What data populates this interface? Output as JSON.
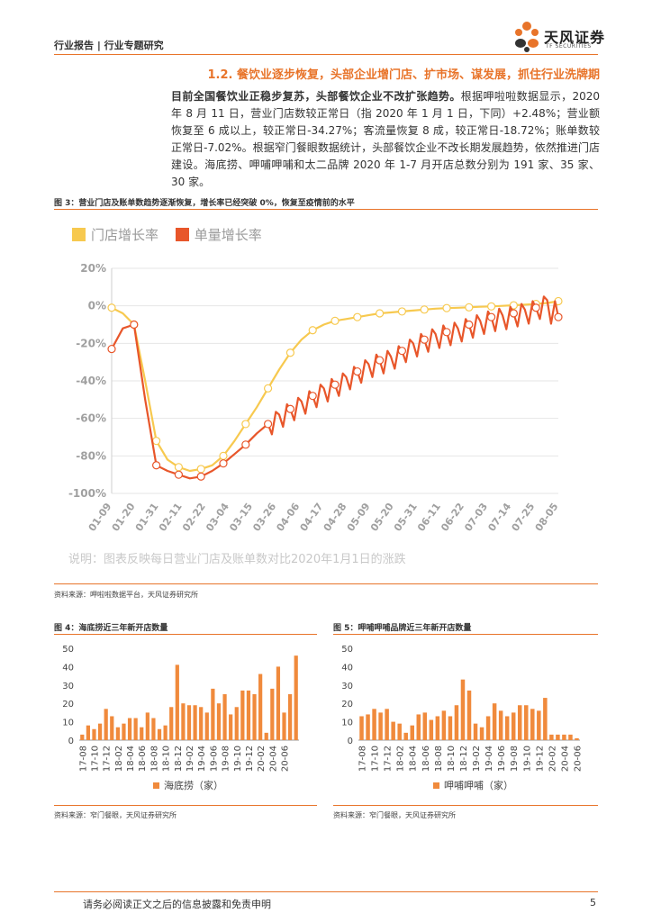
{
  "header": {
    "left": "行业报告 | 行业专题研究",
    "logo_cn": "天风证券",
    "logo_en": "TF SECURITIES"
  },
  "section": {
    "title": "1.2. 餐饮业逐步恢复，头部企业增门店、扩市场、谋发展，抓住行业洗牌期",
    "para_bold": "目前全国餐饮业正稳步复苏，头部餐饮企业不改扩张趋势。",
    "para_rest": "根据呷啦啦数据显示，2020 年 8 月 11 日，营业门店数较正常日（指 2020 年 1 月 1 日，下同）+2.48%；营业额恢复至 6 成以上，较正常日-34.27%；客流量恢复 8 成，较正常日-18.72%；账单数较正常日-7.02%。根据窄门餐眼数据统计，头部餐饮企业不改长期发展趋势，依然推进门店建设。海底捞、呷哺呷哺和太二品牌 2020 年 1-7 月开店总数分别为 191 家、35 家、30 家。"
  },
  "figure3": {
    "title": "图 3：营业门店及账单数趋势逐渐恢复，增长率已经突破 0%，恢复至疫情前的水平",
    "note": "说明：图表反映每日营业门店及账单数对比2020年1月1日的涨跌",
    "source": "资料来源：呷啦啦数据平台，天风证券研究所"
  },
  "figure4": {
    "title": "图 4：海底捞近三年新开店数量",
    "source": "资料来源：窄门餐眼，天风证券研究所"
  },
  "figure5": {
    "title": "图 5：呷哺呷哺品牌近三年新开店数量",
    "source": "资料来源：窄门餐眼，天风证券研究所"
  },
  "footer": {
    "disclaimer": "请务必阅读正文之后的信息披露和免责申明",
    "page": "5"
  },
  "colors": {
    "accent": "#e8742a",
    "store_line": "#f7c94f",
    "bill_line": "#e8562a",
    "bar": "#f08a3c"
  },
  "chart_data": [
    {
      "id": "fig3",
      "type": "line",
      "legend": [
        "门店增长率",
        "单量增长率"
      ],
      "yticks": [
        "20%",
        "0%",
        "-20%",
        "-40%",
        "-60%",
        "-80%",
        "-100%"
      ],
      "ylim": [
        -100,
        20
      ],
      "xticks": [
        "01-09",
        "01-20",
        "01-31",
        "02-11",
        "02-22",
        "03-04",
        "03-15",
        "03-26",
        "04-06",
        "04-17",
        "04-28",
        "05-09",
        "05-20",
        "05-31",
        "06-11",
        "06-22",
        "07-03",
        "07-14",
        "07-25",
        "08-05"
      ],
      "series": [
        {
          "name": "门店增长率",
          "points": [
            [
              0,
              -1
            ],
            [
              1,
              -4
            ],
            [
              2,
              -10
            ],
            [
              3,
              -40
            ],
            [
              4,
              -72
            ],
            [
              5,
              -82
            ],
            [
              6,
              -86
            ],
            [
              7,
              -88
            ],
            [
              8,
              -87
            ],
            [
              9,
              -85
            ],
            [
              10,
              -80
            ],
            [
              11,
              -72
            ],
            [
              12,
              -63
            ],
            [
              13,
              -54
            ],
            [
              14,
              -44
            ],
            [
              15,
              -34
            ],
            [
              16,
              -25
            ],
            [
              17,
              -18
            ],
            [
              18,
              -13
            ],
            [
              19,
              -10
            ],
            [
              20,
              -8
            ],
            [
              21,
              -7
            ],
            [
              22,
              -6
            ],
            [
              23,
              -5
            ],
            [
              24,
              -4
            ],
            [
              25,
              -3.5
            ],
            [
              26,
              -3
            ],
            [
              27,
              -2.5
            ],
            [
              28,
              -2
            ],
            [
              29,
              -1.5
            ],
            [
              30,
              -1.2
            ],
            [
              31,
              -1
            ],
            [
              32,
              -0.8
            ],
            [
              33,
              -0.5
            ],
            [
              34,
              -0.3
            ],
            [
              35,
              0
            ],
            [
              36,
              0.3
            ],
            [
              37,
              0.6
            ],
            [
              38,
              1
            ],
            [
              39,
              1.5
            ],
            [
              40,
              2.5
            ]
          ]
        },
        {
          "name": "单量增长率",
          "points": [
            [
              0,
              -23
            ],
            [
              1,
              -12
            ],
            [
              2,
              -10
            ],
            [
              3,
              -50
            ],
            [
              4,
              -85
            ],
            [
              5,
              -88
            ],
            [
              6,
              -90
            ],
            [
              7,
              -92
            ],
            [
              8,
              -91
            ],
            [
              9,
              -88
            ],
            [
              10,
              -84
            ],
            [
              11,
              -79
            ],
            [
              12,
              -74
            ],
            [
              13,
              -68
            ],
            [
              14,
              -63
            ],
            [
              15,
              -58
            ],
            [
              16,
              -55
            ],
            [
              17,
              -51
            ],
            [
              18,
              -48
            ],
            [
              19,
              -44
            ],
            [
              20,
              -42
            ],
            [
              21,
              -38
            ],
            [
              22,
              -35
            ],
            [
              23,
              -31
            ],
            [
              24,
              -29
            ],
            [
              25,
              -27
            ],
            [
              26,
              -24
            ],
            [
              27,
              -20
            ],
            [
              28,
              -18
            ],
            [
              29,
              -15
            ],
            [
              30,
              -14
            ],
            [
              31,
              -12
            ],
            [
              32,
              -10
            ],
            [
              33,
              -8
            ],
            [
              34,
              -6
            ],
            [
              35,
              -5
            ],
            [
              36,
              -4
            ],
            [
              37,
              -2
            ],
            [
              38,
              -1
            ],
            [
              39,
              3
            ],
            [
              40,
              -6
            ]
          ]
        }
      ]
    },
    {
      "id": "fig4",
      "type": "bar",
      "legend": "海底捞（家）",
      "ylim": [
        0,
        50
      ],
      "yticks": [
        0,
        10,
        20,
        30,
        40,
        50
      ],
      "xticks": [
        "17-08",
        "17-10",
        "17-12",
        "18-02",
        "18-04",
        "18-06",
        "18-08",
        "18-10",
        "18-12",
        "19-02",
        "19-04",
        "19-06",
        "19-08",
        "19-10",
        "19-12",
        "20-02",
        "20-04",
        "20-06"
      ],
      "values": [
        3,
        8,
        6,
        9,
        17,
        13,
        7,
        9,
        12,
        12,
        7,
        15,
        12,
        6,
        8,
        18,
        41,
        20,
        19,
        19,
        18,
        15,
        28,
        20,
        25,
        14,
        18,
        27,
        27,
        25,
        36,
        4,
        28,
        40,
        15,
        25,
        46
      ]
    },
    {
      "id": "fig5",
      "type": "bar",
      "legend": "呷哺呷哺（家）",
      "ylim": [
        0,
        50
      ],
      "yticks": [
        0,
        10,
        20,
        30,
        40,
        50
      ],
      "xticks": [
        "17-08",
        "17-10",
        "17-12",
        "18-02",
        "18-04",
        "18-06",
        "18-08",
        "18-10",
        "18-12",
        "19-02",
        "19-04",
        "19-06",
        "19-08",
        "19-10",
        "19-12",
        "20-02",
        "20-04",
        "20-06"
      ],
      "values": [
        13,
        14,
        17,
        15,
        17,
        10,
        9,
        4,
        8,
        14,
        15,
        11,
        13,
        16,
        13,
        19,
        33,
        27,
        9,
        7,
        13,
        20,
        16,
        13,
        15,
        19,
        19,
        17,
        16,
        23,
        3,
        3,
        3,
        3,
        1
      ]
    }
  ]
}
